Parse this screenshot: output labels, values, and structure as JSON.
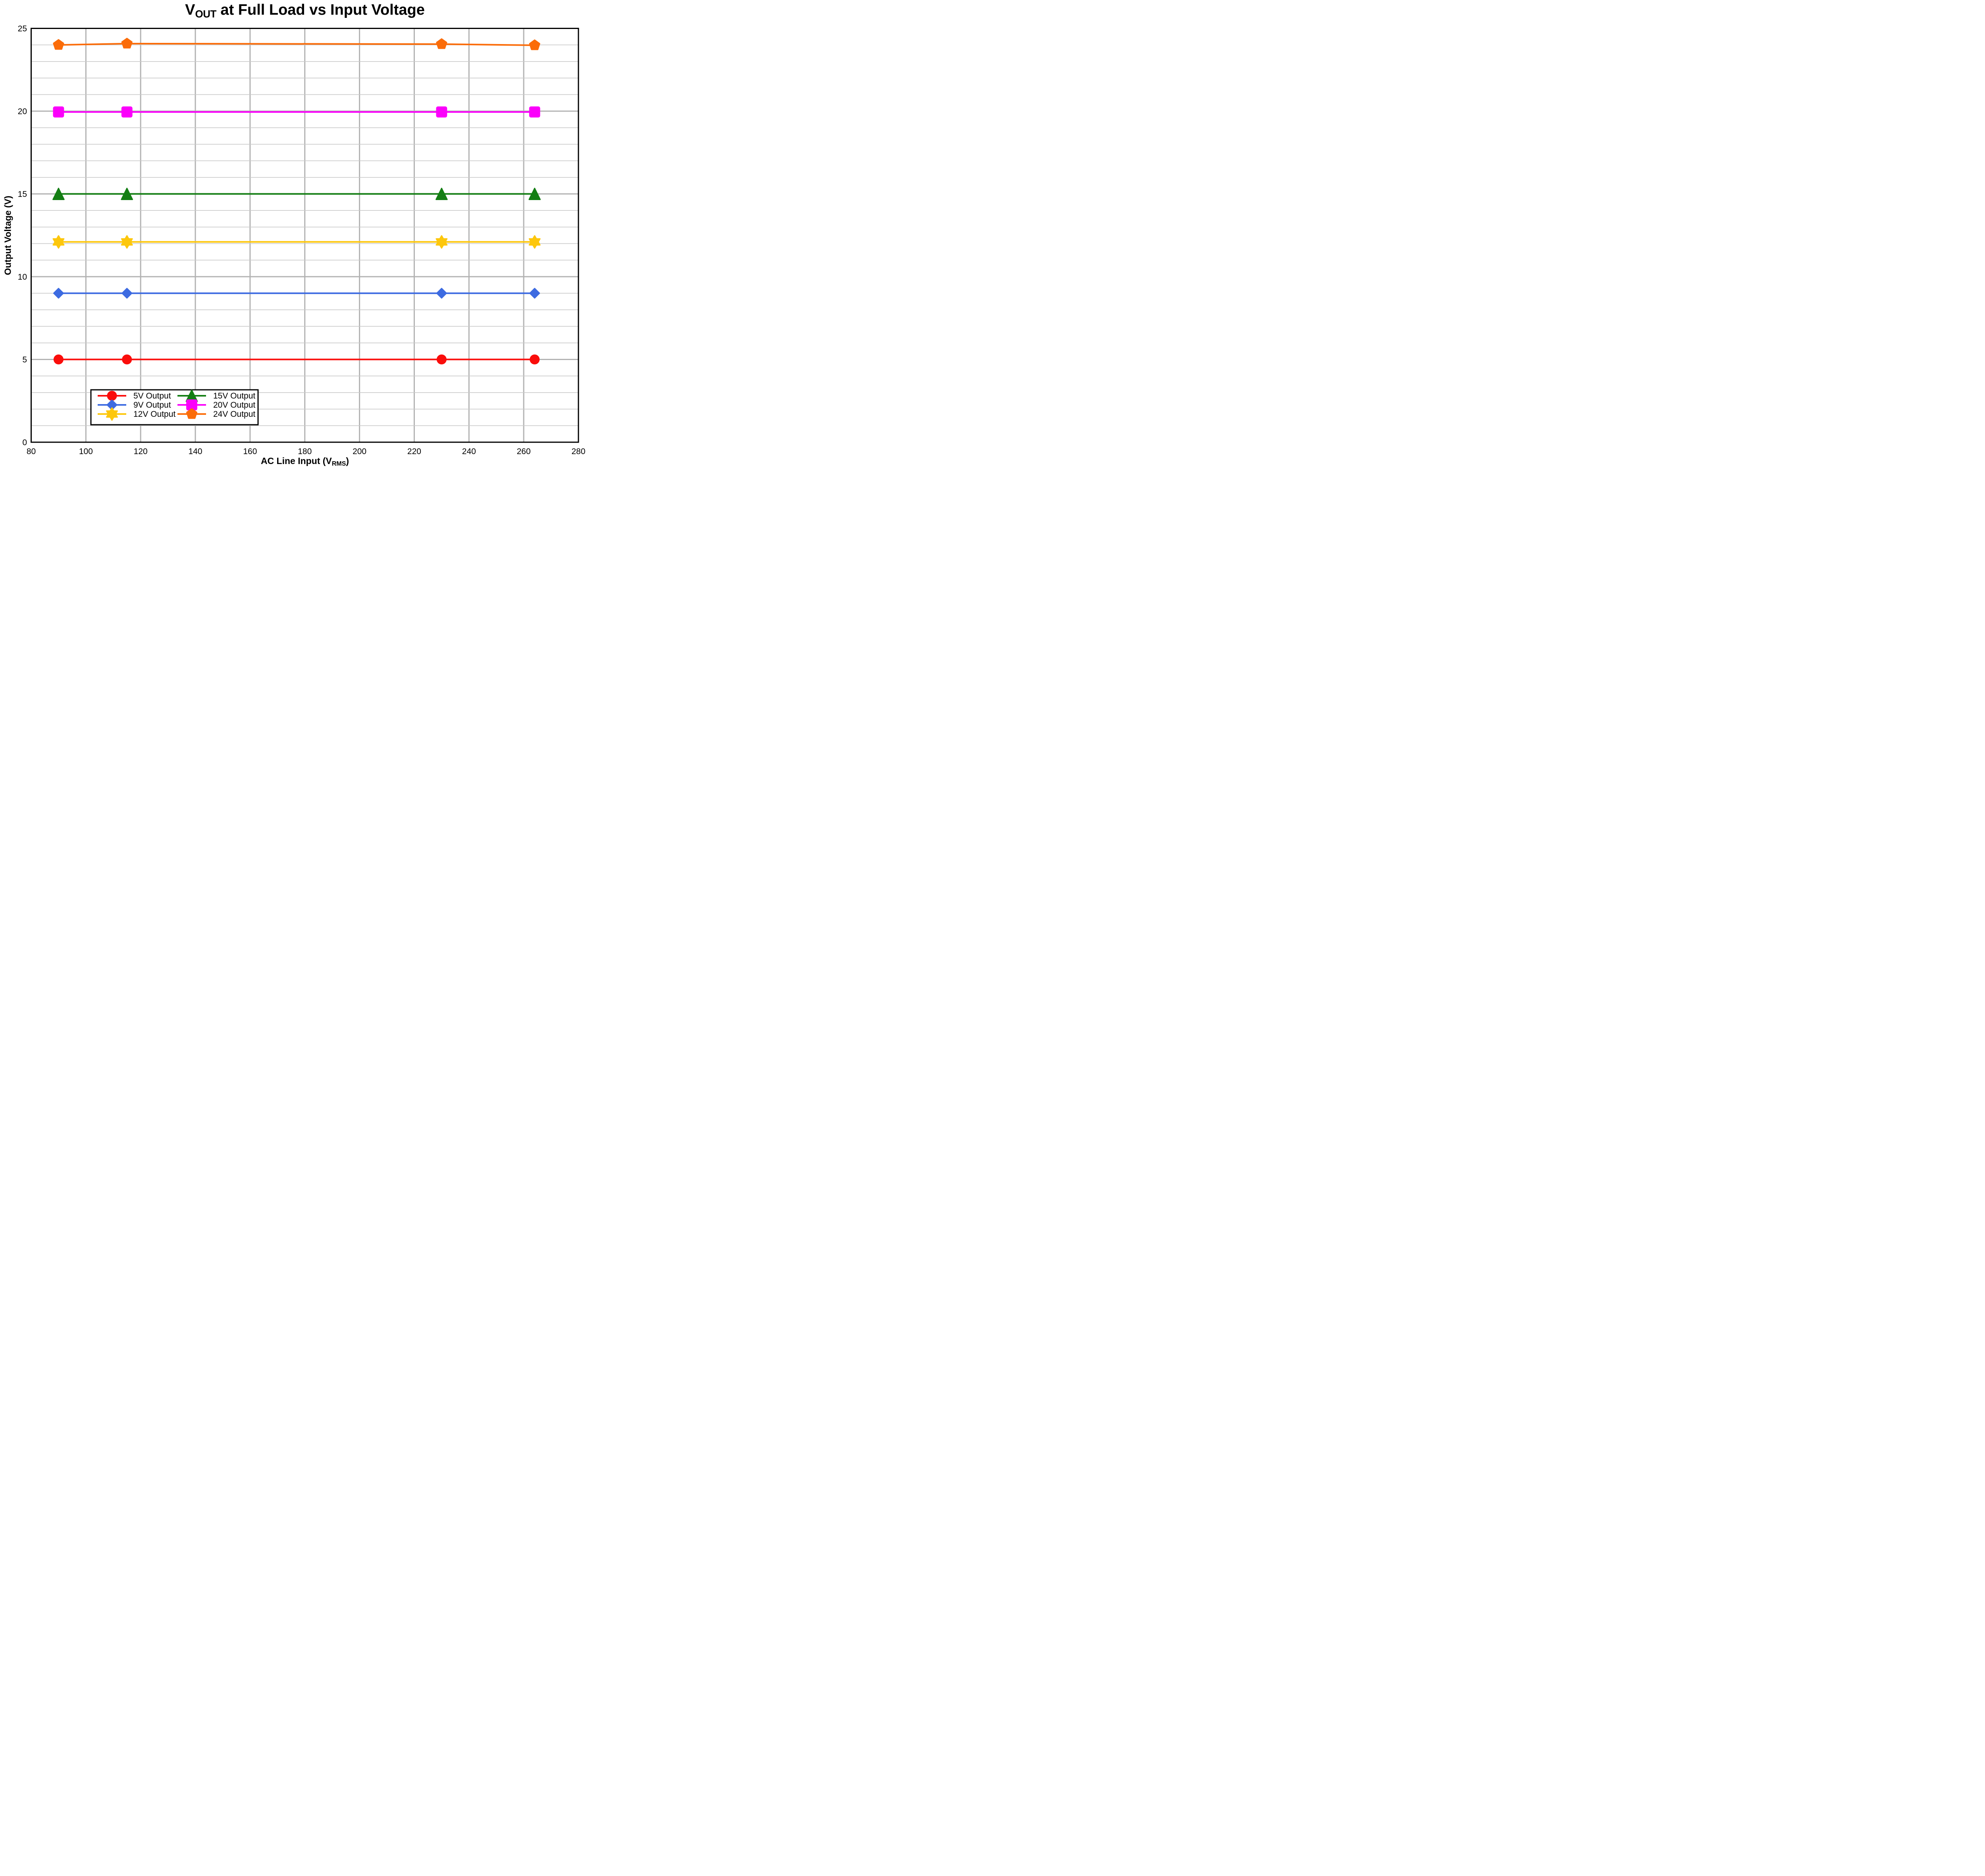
{
  "title": {
    "prefix": "V",
    "subscript": "OUT",
    "suffix": " at Full Load vs Input Voltage"
  },
  "axes": {
    "x": {
      "label_prefix": "AC Line Input (V",
      "label_subscript": "RMS",
      "label_suffix": ")",
      "min": 80,
      "max": 280,
      "ticks": [
        80,
        100,
        120,
        140,
        160,
        180,
        200,
        220,
        240,
        260,
        280
      ]
    },
    "y": {
      "label": "Output Voltage (V)",
      "min": 0,
      "max": 25,
      "ticks": [
        0,
        5,
        10,
        15,
        20,
        25
      ],
      "minor_step": 1,
      "major_step": 5
    }
  },
  "chart_data": {
    "type": "line",
    "x": [
      90,
      115,
      230,
      264
    ],
    "series": [
      {
        "name": "5V Output",
        "color": "#fa0d0b",
        "marker": "circle",
        "values": [
          5.0,
          5.0,
          5.0,
          5.0
        ]
      },
      {
        "name": "9V Output",
        "color": "#3d6be1",
        "marker": "diamond",
        "values": [
          9.0,
          9.0,
          9.0,
          9.0
        ]
      },
      {
        "name": "12V Output",
        "color": "#fdc70c",
        "marker": "star6",
        "values": [
          12.1,
          12.1,
          12.1,
          12.1
        ]
      },
      {
        "name": "15V Output",
        "color": "#147e14",
        "marker": "triangle",
        "values": [
          15.0,
          15.0,
          15.0,
          15.0
        ]
      },
      {
        "name": "20V Output",
        "color": "#fb00fb",
        "marker": "square",
        "values": [
          19.95,
          19.95,
          19.95,
          19.95
        ]
      },
      {
        "name": "24V Output",
        "color": "#fb6c09",
        "marker": "pentagon",
        "values": [
          24.0,
          24.08,
          24.05,
          23.98
        ]
      }
    ],
    "legend_position": "lower-left",
    "legend_columns": 2,
    "grid": true,
    "xlim": [
      80,
      280
    ],
    "ylim": [
      0,
      25
    ]
  },
  "style": {
    "spine_color": "#000000",
    "grid_minor_color": "#c9c9c9",
    "grid_major_color": "#b2b2b2",
    "text_color": "#000000",
    "background": "#ffffff"
  }
}
